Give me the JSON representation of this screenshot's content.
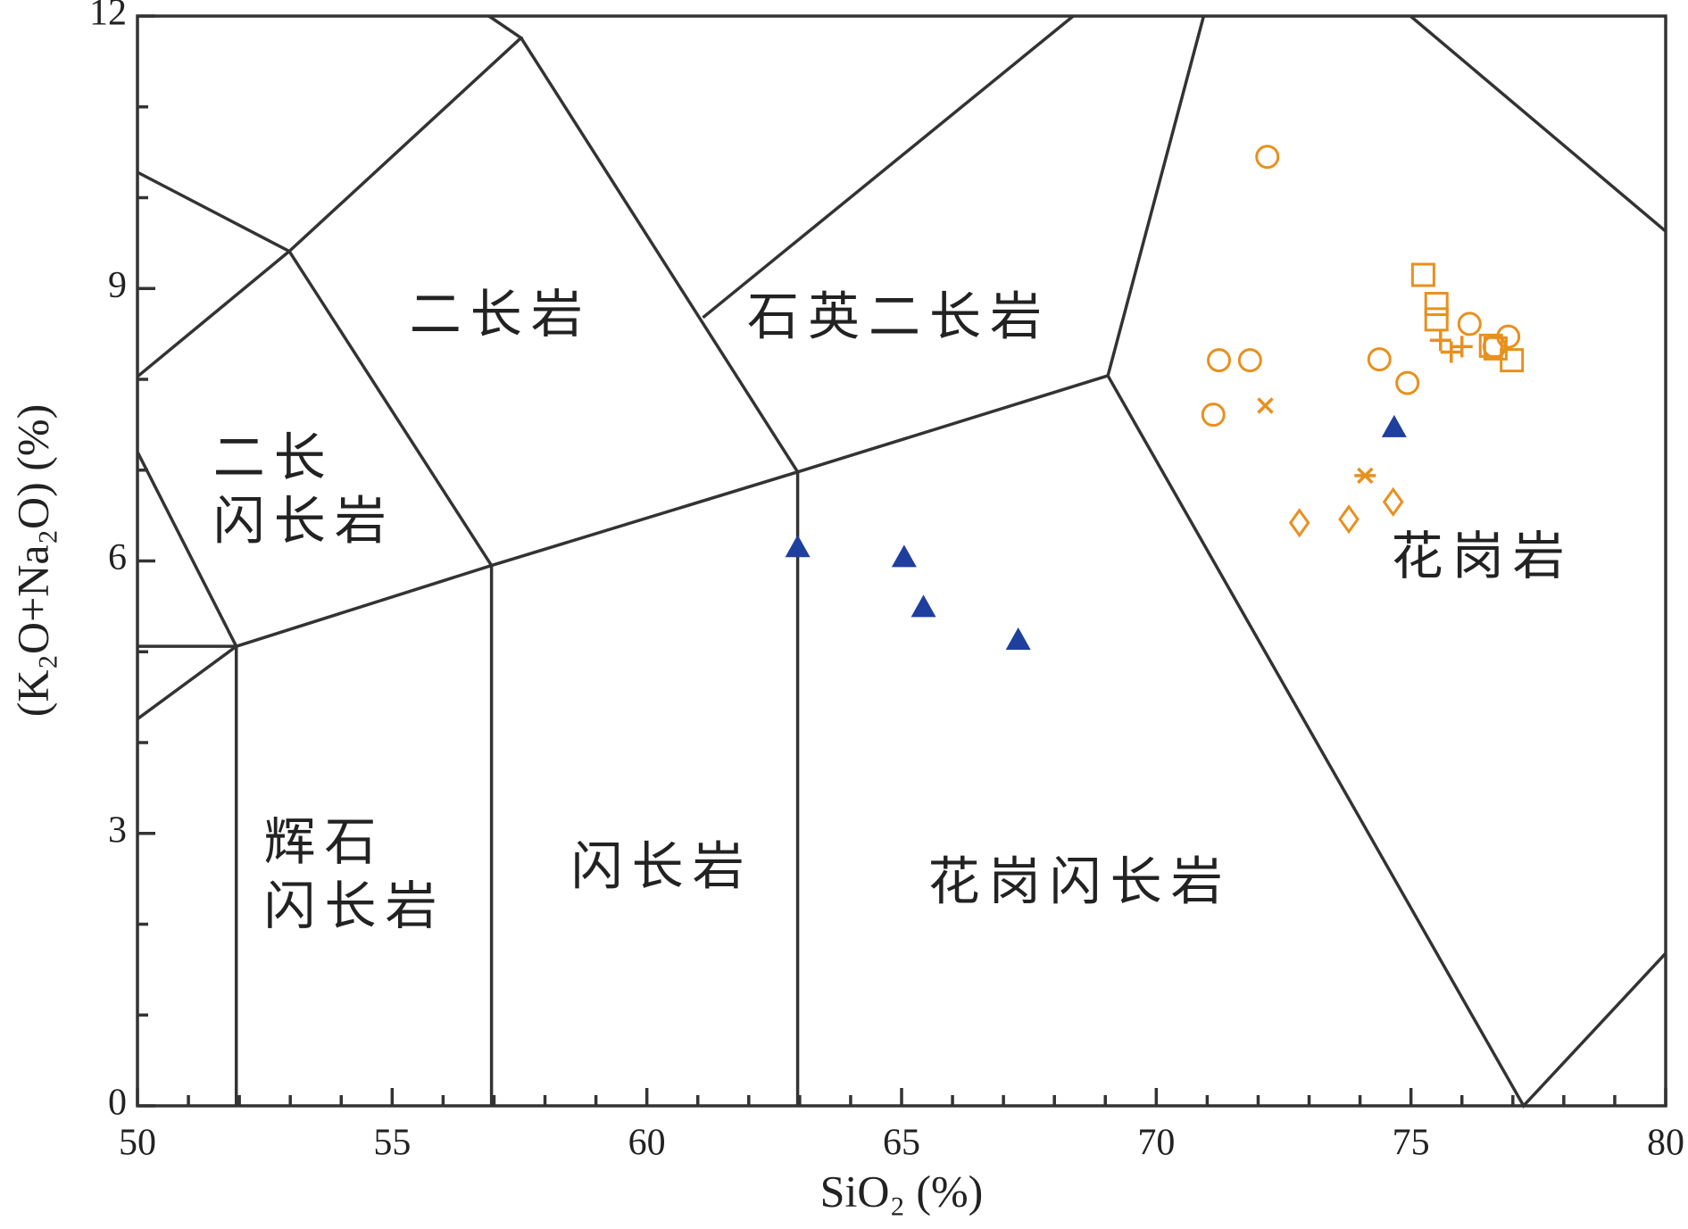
{
  "chart_data": {
    "type": "scatter",
    "xlabel": "SiO₂ (%)",
    "ylabel": "(K₂O+Na₂O) (%)",
    "xlim": [
      50,
      80
    ],
    "ylim": [
      0,
      12
    ],
    "xticks": [
      50,
      55,
      60,
      65,
      70,
      75,
      80
    ],
    "yticks": [
      0,
      3,
      6,
      9,
      12
    ],
    "xticks_minor": [
      51,
      52,
      53,
      54,
      56,
      57,
      58,
      59,
      61,
      62,
      63,
      64,
      66,
      67,
      68,
      69,
      71,
      72,
      73,
      74,
      76,
      77,
      78,
      79
    ],
    "yticks_minor": [
      1,
      2,
      4,
      5,
      7,
      8,
      10,
      11
    ],
    "annotations": [
      "二长岩",
      "石英二长岩",
      "二长",
      "闪长岩",
      "花岗岩",
      "辉石",
      "闪长岩",
      "闪长岩",
      "花岗闪长岩"
    ],
    "series": [
      {
        "marker": "triangle",
        "color": "#1f3f9e",
        "x": [
          62.96,
          65.05,
          65.43,
          67.29,
          74.67
        ],
        "y": [
          6.15,
          6.04,
          5.49,
          5.13,
          7.47
        ]
      },
      {
        "marker": "circle",
        "color": "#e8901e",
        "x": [
          72.18,
          71.23,
          71.84,
          71.12,
          74.38,
          74.93,
          76.15,
          76.91,
          76.64
        ],
        "y": [
          10.45,
          8.21,
          8.21,
          7.61,
          8.22,
          7.96,
          8.61,
          8.47,
          8.36
        ]
      },
      {
        "marker": "square",
        "color": "#e8901e",
        "x": [
          75.24,
          75.5,
          75.5,
          76.57,
          76.98,
          76.66
        ],
        "y": [
          9.15,
          8.83,
          8.66,
          8.37,
          8.21,
          8.34
        ]
      },
      {
        "marker": "plus",
        "color": "#e8901e",
        "x": [
          75.58,
          75.79,
          76.0
        ],
        "y": [
          8.43,
          8.3,
          8.36
        ]
      },
      {
        "marker": "cross",
        "color": "#e8901e",
        "x": [
          72.14
        ],
        "y": [
          7.71
        ]
      },
      {
        "marker": "asterisk",
        "color": "#e8901e",
        "x": [
          74.1
        ],
        "y": [
          6.94
        ]
      },
      {
        "marker": "diamond",
        "color": "#e8901e",
        "x": [
          72.81,
          73.78,
          74.65
        ],
        "y": [
          6.42,
          6.46,
          6.65
        ]
      }
    ]
  }
}
